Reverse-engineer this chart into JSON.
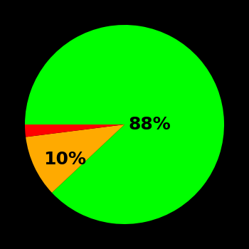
{
  "slices": [
    88,
    10,
    2
  ],
  "colors": [
    "#00ff00",
    "#ffaa00",
    "#ff0000"
  ],
  "labels": [
    "88%",
    "10%",
    ""
  ],
  "background_color": "#000000",
  "startangle": 180,
  "label_fontsize": 18,
  "label_fontweight": "bold",
  "label_color": "#000000",
  "label_positions": {
    "green": [
      0.25,
      0.0
    ],
    "yellow": [
      -0.6,
      -0.35
    ]
  }
}
